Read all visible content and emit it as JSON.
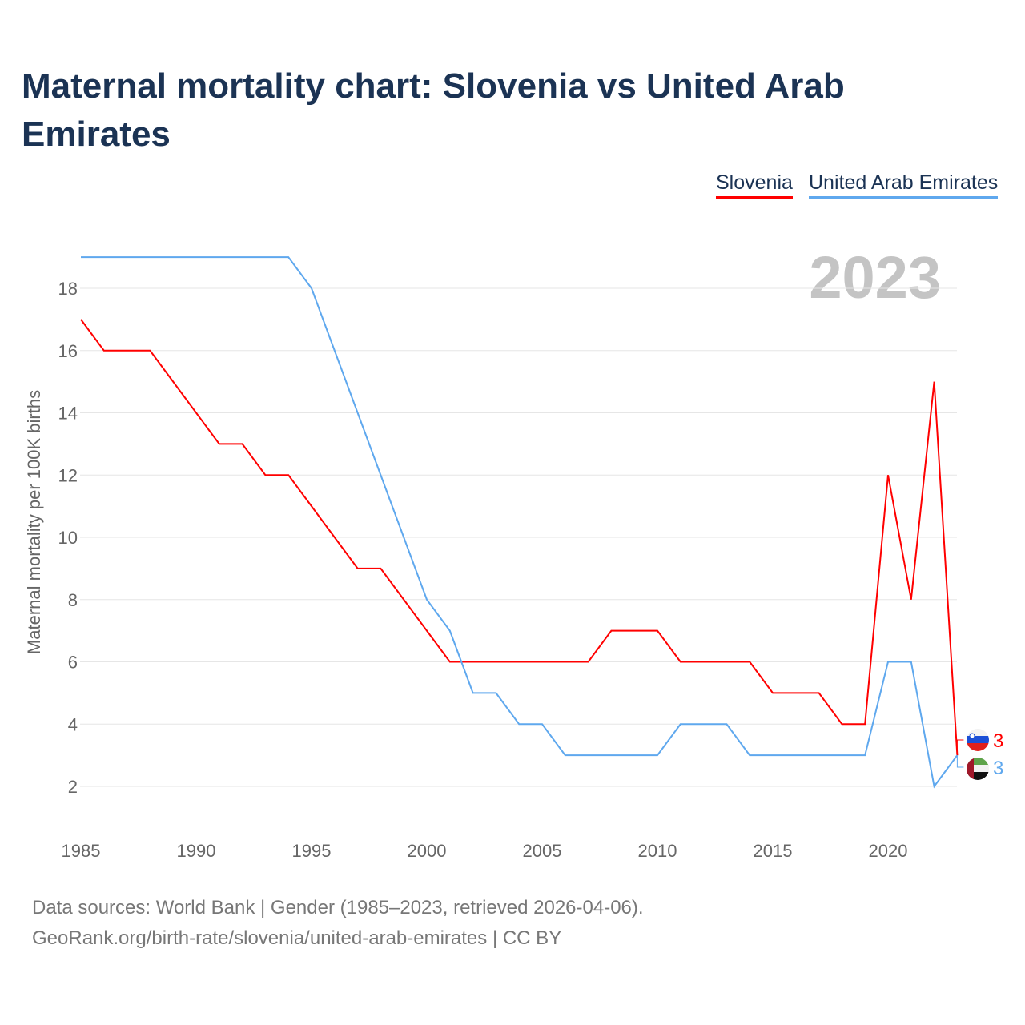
{
  "title": "Maternal mortality chart: Slovenia vs United Arab Emirates",
  "year_label": "2023",
  "footer": {
    "line1": "Data sources: World Bank | Gender (1985–2023, retrieved 2026-04-06).",
    "line2": "GeoRank.org/birth-rate/slovenia/united-arab-emirates | CC BY"
  },
  "chart_data": {
    "type": "line",
    "title": "Maternal mortality chart: Slovenia vs United Arab Emirates",
    "xlabel": "",
    "ylabel": "Maternal mortality per 100K births",
    "xlim": [
      1985,
      2023
    ],
    "ylim": [
      0,
      20
    ],
    "x_ticks": [
      1985,
      1990,
      1995,
      2000,
      2005,
      2010,
      2015,
      2020
    ],
    "y_ticks": [
      2,
      4,
      6,
      8,
      10,
      12,
      14,
      16,
      18
    ],
    "grid": true,
    "legend_placement": "top-right",
    "x": [
      1985,
      1986,
      1987,
      1988,
      1989,
      1990,
      1991,
      1992,
      1993,
      1994,
      1995,
      1996,
      1997,
      1998,
      1999,
      2000,
      2001,
      2002,
      2003,
      2004,
      2005,
      2006,
      2007,
      2008,
      2009,
      2010,
      2011,
      2012,
      2013,
      2014,
      2015,
      2016,
      2017,
      2018,
      2019,
      2020,
      2021,
      2022,
      2023
    ],
    "series": [
      {
        "name": "Slovenia",
        "color": "#ff0000",
        "end_label": "3",
        "values": [
          17,
          16,
          16,
          16,
          15,
          14,
          13,
          13,
          12,
          12,
          11,
          10,
          9,
          9,
          8,
          7,
          6,
          6,
          6,
          6,
          6,
          6,
          6,
          7,
          7,
          7,
          6,
          6,
          6,
          6,
          5,
          5,
          5,
          4,
          4,
          12,
          8,
          15,
          3
        ]
      },
      {
        "name": "United Arab Emirates",
        "color": "#5fa8ee",
        "end_label": "3",
        "values": [
          19,
          19,
          19,
          19,
          19,
          19,
          19,
          19,
          19,
          19,
          18,
          16,
          14,
          12,
          10,
          8,
          7,
          5,
          5,
          4,
          4,
          3,
          3,
          3,
          3,
          3,
          4,
          4,
          4,
          3,
          3,
          3,
          3,
          3,
          3,
          6,
          6,
          2,
          3
        ]
      }
    ]
  }
}
